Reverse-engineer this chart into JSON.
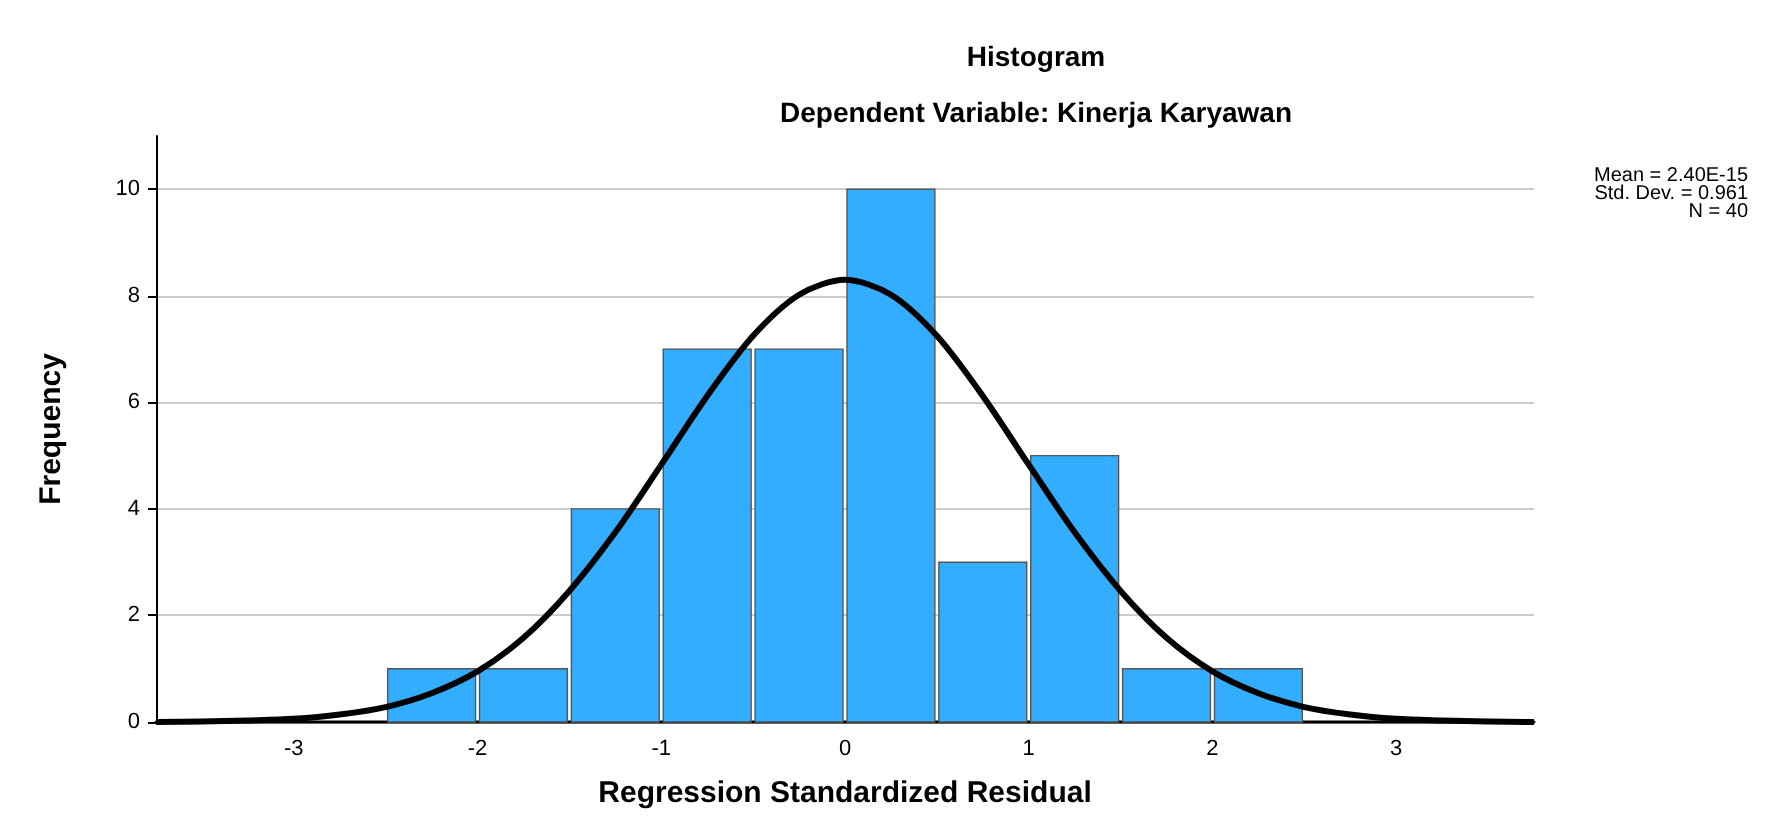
{
  "chart_data": {
    "type": "histogram",
    "title": "Histogram",
    "subtitle": "Dependent Variable: Kinerja Karyawan",
    "xlabel": "Regression Standardized Residual",
    "ylabel": "Frequency",
    "annotations": [
      "Mean = 2.40E-15",
      "Std. Dev. = 0.961",
      "N = 40"
    ],
    "bins": [
      -2.5,
      -2,
      -1.5,
      -1,
      -0.5,
      0,
      0.5,
      1,
      1.5,
      2,
      2.5
    ],
    "values": [
      1,
      1,
      4,
      7,
      7,
      10,
      3,
      5,
      1,
      1
    ],
    "color": "#33adff",
    "series": [
      {
        "type": "line",
        "color": "#000000",
        "x": [
          -3.75,
          -3.5,
          -3.25,
          -3,
          -2.75,
          -2.5,
          -2.25,
          -2,
          -1.75,
          -1.5,
          -1.25,
          -1,
          -0.75,
          -0.5,
          -0.25,
          0,
          0.25,
          0.5,
          0.75,
          1,
          1.25,
          1.5,
          1.75,
          2,
          2.25,
          2.5,
          2.75,
          3,
          3.25,
          3.5,
          3.75
        ],
        "values": [
          0,
          0.01,
          0.03,
          0.06,
          0.14,
          0.28,
          0.54,
          0.95,
          1.58,
          2.46,
          3.56,
          4.83,
          6.12,
          7.25,
          8.02,
          8.3,
          8.02,
          7.25,
          6.12,
          4.83,
          3.56,
          2.46,
          1.58,
          0.95,
          0.54,
          0.28,
          0.14,
          0.06,
          0.03,
          0.01,
          0
        ]
      }
    ],
    "xlim": [
      -3.75,
      3.75
    ],
    "xticks": [
      -3,
      -2,
      -1,
      0,
      1,
      2,
      3
    ],
    "ylim": [
      0,
      11
    ],
    "yticks": [
      0,
      2,
      4,
      6,
      8,
      10
    ],
    "grid": "y"
  }
}
